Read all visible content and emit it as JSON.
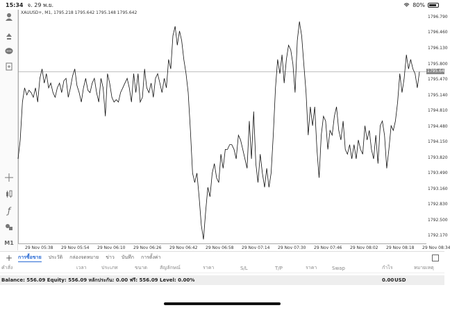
{
  "status": {
    "time": "15:34",
    "date": "จ. 29 พ.ย.",
    "battery": "80%",
    "battery_level": 0.8
  },
  "chart": {
    "info": "XAUUSD+, M1, 1795.218 1795.642 1795.148 1795.642",
    "current_price": "1795.642",
    "price_ticks": [
      "1796.790",
      "1796.460",
      "1796.130",
      "1795.800",
      "1795.470",
      "1795.140",
      "1794.810",
      "1794.480",
      "1794.150",
      "1793.820",
      "1793.490",
      "1793.160",
      "1792.830",
      "1792.500",
      "1792.170"
    ],
    "time_ticks": [
      "29 Nov 05:38",
      "29 Nov 05:54",
      "29 Nov 06:10",
      "29 Nov 06:26",
      "29 Nov 06:42",
      "29 Nov 06:58",
      "29 Nov 07:14",
      "29 Nov 07:30",
      "29 Nov 07:46",
      "29 Nov 08:02",
      "29 Nov 08:18",
      "29 Nov 08:34"
    ]
  },
  "chart_data": {
    "type": "line",
    "ylim": [
      1792.0,
      1796.95
    ],
    "values": [
      1793.8,
      1794.2,
      1795.0,
      1795.3,
      1795.15,
      1795.25,
      1795.2,
      1795.1,
      1795.3,
      1795.0,
      1795.5,
      1795.7,
      1795.4,
      1795.6,
      1795.3,
      1795.4,
      1795.2,
      1795.1,
      1795.3,
      1795.4,
      1795.2,
      1795.45,
      1795.5,
      1795.1,
      1795.3,
      1795.55,
      1795.7,
      1795.35,
      1795.2,
      1795.0,
      1795.3,
      1795.5,
      1795.25,
      1795.2,
      1795.4,
      1795.5,
      1795.2,
      1795.0,
      1795.5,
      1795.3,
      1794.7,
      1795.6,
      1795.4,
      1795.1,
      1795.0,
      1795.05,
      1795.0,
      1795.2,
      1795.3,
      1795.4,
      1795.5,
      1795.3,
      1795.0,
      1795.6,
      1795.2,
      1795.6,
      1795.0,
      1795.1,
      1795.7,
      1795.3,
      1795.2,
      1795.4,
      1795.1,
      1795.5,
      1795.6,
      1795.4,
      1795.2,
      1795.5,
      1795.3,
      1795.9,
      1795.7,
      1796.4,
      1796.6,
      1796.2,
      1796.5,
      1796.3,
      1795.9,
      1795.6,
      1795.2,
      1794.4,
      1793.5,
      1793.3,
      1793.5,
      1793.0,
      1792.4,
      1792.1,
      1792.7,
      1793.2,
      1793.0,
      1793.5,
      1793.7,
      1793.4,
      1793.3,
      1793.9,
      1793.6,
      1794.0,
      1794.0,
      1794.1,
      1794.1,
      1794.0,
      1793.8,
      1794.3,
      1794.2,
      1794.0,
      1793.8,
      1793.6,
      1794.6,
      1793.8,
      1794.8,
      1793.7,
      1793.3,
      1793.9,
      1793.5,
      1793.2,
      1793.6,
      1793.2,
      1793.5,
      1794.3,
      1795.3,
      1795.9,
      1795.6,
      1796.0,
      1795.4,
      1795.9,
      1796.2,
      1796.1,
      1795.8,
      1795.2,
      1796.3,
      1796.7,
      1796.4,
      1795.8,
      1795.2,
      1794.3,
      1794.9,
      1794.5,
      1794.9,
      1794.0,
      1793.4,
      1794.3,
      1794.7,
      1794.6,
      1794.0,
      1794.4,
      1794.3,
      1794.7,
      1794.9,
      1794.4,
      1794.2,
      1794.6,
      1794.0,
      1793.9,
      1794.1,
      1793.8,
      1794.1,
      1793.8,
      1794.2,
      1794.0,
      1793.9,
      1794.5,
      1794.2,
      1794.4,
      1794.0,
      1793.8,
      1794.3,
      1793.7,
      1794.5,
      1794.6,
      1794.3,
      1793.6,
      1794.0,
      1794.5,
      1794.4,
      1794.6,
      1795.0,
      1795.6,
      1795.2,
      1795.5,
      1796.0,
      1795.7,
      1795.9,
      1795.7,
      1795.6,
      1795.3,
      1795.64
    ]
  },
  "sidebar": {
    "icons": [
      "user-icon",
      "transfer-icon",
      "chat-icon",
      "new-file-icon",
      "crosshair-icon",
      "candles-icon",
      "function-icon",
      "objects-icon"
    ],
    "timeframe": "M1"
  },
  "tabs": {
    "items": [
      "การซื้อขาย",
      "ประวัติ",
      "กล่องจดหมาย",
      "ข่าว",
      "บันทึก",
      "การตั้งค่า"
    ]
  },
  "columns": [
    "คำสั่ง",
    "เวลา",
    "ประเภท",
    "ขนาด",
    "สัญลักษณ์",
    "ราคา",
    "S/L",
    "T/P",
    "ราคา",
    "Swap",
    "กำไร",
    "หมายเหตุ"
  ],
  "balance": {
    "summary": "Balance: 556.09 Equity: 556.09 หลักประกัน: 0.00 ฟรี: 556.09 Level: 0.00%",
    "profit": "0.00",
    "currency": "USD"
  }
}
